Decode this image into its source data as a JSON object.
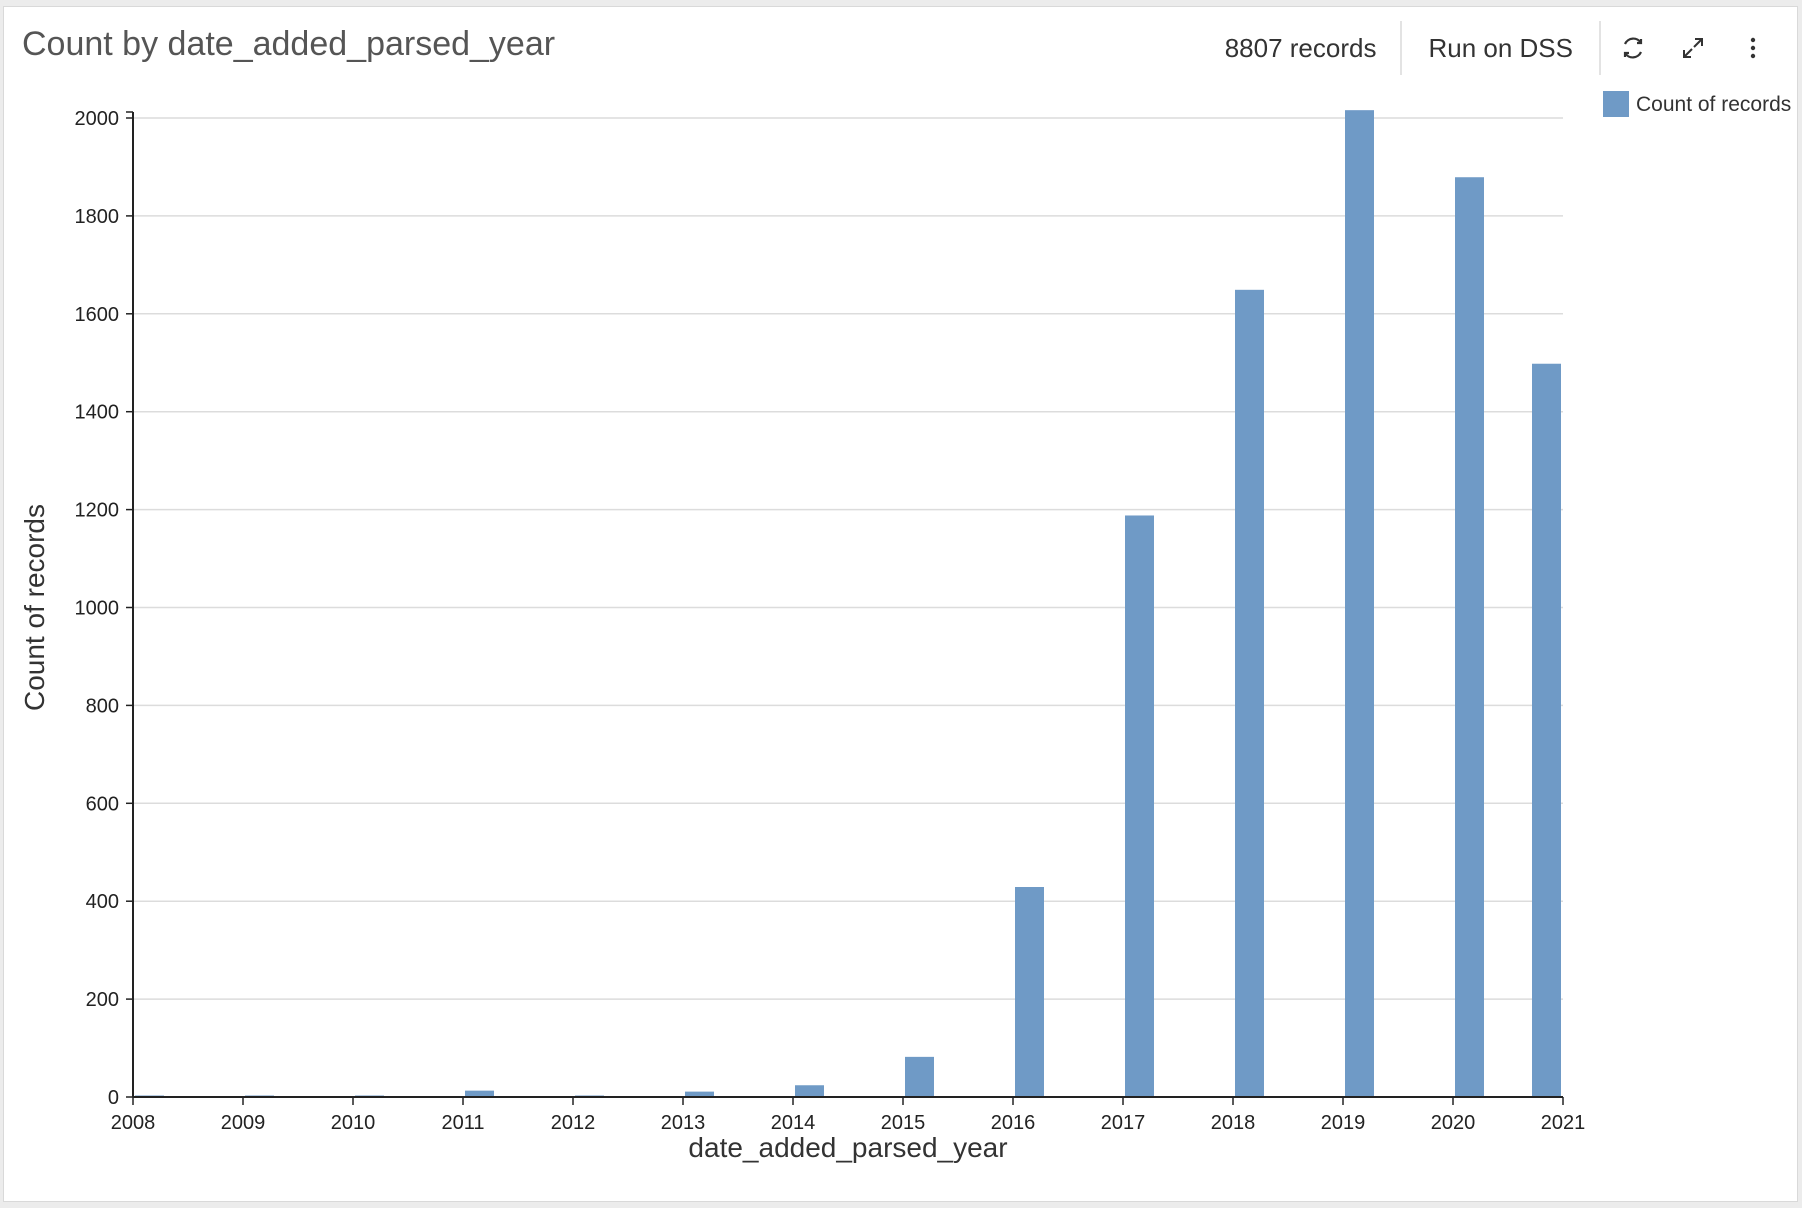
{
  "header": {
    "title": "Count by date_added_parsed_year",
    "records": "8807 records",
    "run_label": "Run on DSS",
    "icons": [
      "refresh-icon",
      "expand-icon",
      "more-vertical-icon"
    ]
  },
  "chart_data": {
    "type": "bar",
    "x": [
      2008,
      2009,
      2010,
      2011,
      2012,
      2013,
      2014,
      2015,
      2016,
      2017,
      2018,
      2019,
      2020,
      2021
    ],
    "x_ticks": [
      "2008",
      "2009",
      "2010",
      "2011",
      "2012",
      "2013",
      "2014",
      "2015",
      "2016",
      "2017",
      "2018",
      "2019",
      "2020",
      "2021"
    ],
    "series": [
      {
        "name": "Count of records",
        "color": "#6f9ac6",
        "values": [
          2,
          2,
          1,
          13,
          3,
          11,
          24,
          82,
          429,
          1188,
          1649,
          2016,
          1879,
          1498
        ]
      }
    ],
    "xlabel": "date_added_parsed_year",
    "ylabel": "Count of records",
    "xlim": [
      2008,
      2021
    ],
    "ylim": [
      0,
      2000
    ],
    "y_ticks": [
      "0",
      "200",
      "400",
      "600",
      "800",
      "1000",
      "1200",
      "1400",
      "1600",
      "1800",
      "2000"
    ],
    "grid": true,
    "legend": "top-right"
  }
}
